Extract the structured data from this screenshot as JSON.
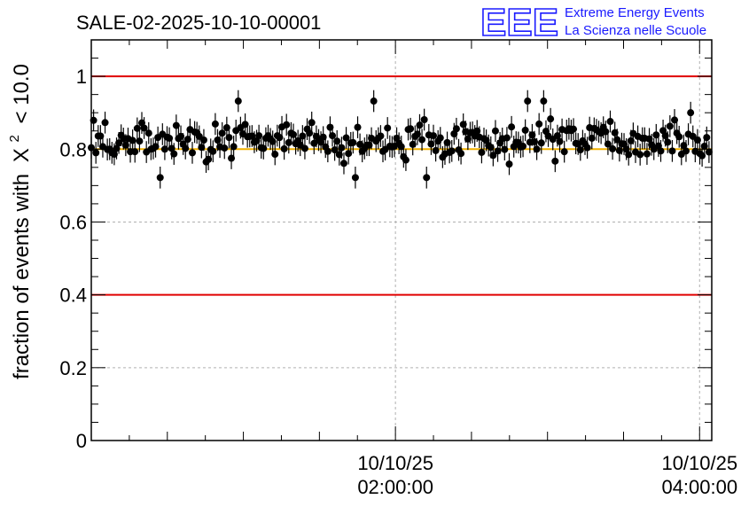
{
  "chart_data": {
    "type": "scatter",
    "title": "SALE-02-2025-10-10-00001",
    "ylabel": "fraction of events with",
    "ylabel_symbol": "X",
    "ylabel_sup": "2",
    "ylabel_tail": "< 10.0",
    "ylim": [
      0,
      1.1
    ],
    "yticks": [
      {
        "value": 0,
        "label": "0"
      },
      {
        "value": 0.2,
        "label": "0.2"
      },
      {
        "value": 0.4,
        "label": "0.4"
      },
      {
        "value": 0.6,
        "label": "0.6"
      },
      {
        "value": 0.8,
        "label": "0.8"
      },
      {
        "value": 1,
        "label": "1"
      }
    ],
    "xticks": [
      {
        "hour": 2.0,
        "date": "10/10/25",
        "time": "02:00:00"
      },
      {
        "hour": 4.0,
        "date": "10/10/25",
        "time": "04:00:00"
      }
    ],
    "xlim_hours": [
      0.0,
      4.08
    ],
    "grid": true,
    "reference_lines": [
      {
        "y": 1.0,
        "color": "#e00000"
      },
      {
        "y": 0.4,
        "color": "#e00000"
      },
      {
        "y": 0.8,
        "color": "#f0b000"
      }
    ],
    "series": [
      {
        "marker_color": "#000000",
        "n_points": 270,
        "x_start_hour": 0.0,
        "x_step_hours": 0.0151,
        "mean_y": 0.822,
        "error_y": 0.03,
        "values": []
      }
    ]
  },
  "logo": {
    "mark": "EEE",
    "line1": "Extreme Energy Events",
    "line2": "La Scienza nelle Scuole",
    "color": "#1a1aff"
  }
}
